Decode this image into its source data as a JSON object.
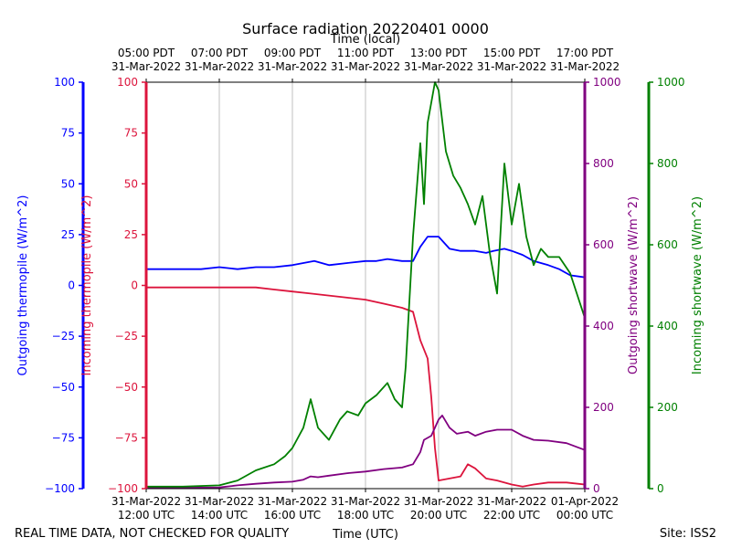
{
  "chart_data": {
    "type": "line",
    "title": "Surface radiation 20220401 0000",
    "top_axis_label": "Time (local)",
    "xlabel": "Time (UTC)",
    "x_ticks_bottom": [
      {
        "line1": "31-Mar-2022",
        "line2": "12:00 UTC"
      },
      {
        "line1": "31-Mar-2022",
        "line2": "14:00 UTC"
      },
      {
        "line1": "31-Mar-2022",
        "line2": "16:00 UTC"
      },
      {
        "line1": "31-Mar-2022",
        "line2": "18:00 UTC"
      },
      {
        "line1": "31-Mar-2022",
        "line2": "20:00 UTC"
      },
      {
        "line1": "31-Mar-2022",
        "line2": "22:00 UTC"
      },
      {
        "line1": "01-Apr-2022",
        "line2": "00:00 UTC"
      }
    ],
    "x_ticks_top": [
      {
        "line1": "05:00 PDT",
        "line2": "31-Mar-2022"
      },
      {
        "line1": "07:00 PDT",
        "line2": "31-Mar-2022"
      },
      {
        "line1": "09:00 PDT",
        "line2": "31-Mar-2022"
      },
      {
        "line1": "11:00 PDT",
        "line2": "31-Mar-2022"
      },
      {
        "line1": "13:00 PDT",
        "line2": "31-Mar-2022"
      },
      {
        "line1": "15:00 PDT",
        "line2": "31-Mar-2022"
      },
      {
        "line1": "17:00 PDT",
        "line2": "31-Mar-2022"
      }
    ],
    "x_range_hours_utc": [
      12,
      24
    ],
    "axes": {
      "outgoing_thermopile": {
        "label": "Outgoing thermopile (W/m^2)",
        "color": "#0000ff",
        "ylim": [
          -100,
          100
        ],
        "ticks": [
          "100",
          "75",
          "50",
          "25",
          "0",
          "−25",
          "−50",
          "−75",
          "−100"
        ]
      },
      "incoming_thermopile": {
        "label": "Incoming thermopile (W/m^2)",
        "color": "#dc143c",
        "ylim": [
          -100,
          100
        ],
        "ticks": [
          "100",
          "75",
          "50",
          "25",
          "0",
          "−25",
          "−50",
          "−75",
          "−100"
        ]
      },
      "outgoing_shortwave": {
        "label": "Outgoing shortwave (W/m^2)",
        "color": "#800080",
        "ylim": [
          0,
          1000
        ],
        "ticks": [
          "1000",
          "800",
          "600",
          "400",
          "200",
          "0"
        ]
      },
      "incoming_shortwave": {
        "label": "Incoming shortwave (W/m^2)",
        "color": "#008000",
        "ylim": [
          0,
          1000
        ],
        "ticks": [
          "1000",
          "800",
          "600",
          "400",
          "200",
          "0"
        ]
      }
    },
    "series": [
      {
        "name": "Outgoing thermopile",
        "axis": "outgoing_thermopile",
        "color": "#0000ff",
        "x": [
          12.0,
          12.5,
          13.0,
          13.5,
          14.0,
          14.5,
          15.0,
          15.5,
          16.0,
          16.3,
          16.6,
          17.0,
          17.5,
          18.0,
          18.3,
          18.6,
          19.0,
          19.3,
          19.5,
          19.7,
          20.0,
          20.3,
          20.6,
          21.0,
          21.3,
          21.5,
          21.8,
          22.0,
          22.3,
          22.6,
          23.0,
          23.3,
          23.6,
          24.0
        ],
        "y": [
          8,
          8,
          8,
          8,
          9,
          8,
          9,
          9,
          10,
          11,
          12,
          10,
          11,
          12,
          12,
          13,
          12,
          12,
          19,
          24,
          24,
          18,
          17,
          17,
          16,
          17,
          18,
          17,
          15,
          12,
          10,
          8,
          5,
          4
        ]
      },
      {
        "name": "Incoming thermopile",
        "axis": "incoming_thermopile",
        "color": "#dc143c",
        "x": [
          12.0,
          13.0,
          14.0,
          15.0,
          15.5,
          16.0,
          16.5,
          17.0,
          17.5,
          18.0,
          18.5,
          19.0,
          19.3,
          19.5,
          19.7,
          19.8,
          19.9,
          20.0,
          20.3,
          20.6,
          20.8,
          21.0,
          21.3,
          21.6,
          22.0,
          22.3,
          22.6,
          23.0,
          23.5,
          24.0
        ],
        "y": [
          -1,
          -1,
          -1,
          -1,
          -2,
          -3,
          -4,
          -5,
          -6,
          -7,
          -9,
          -11,
          -13,
          -27,
          -36,
          -55,
          -80,
          -96,
          -95,
          -94,
          -88,
          -90,
          -95,
          -96,
          -98,
          -99,
          -98,
          -97,
          -97,
          -98
        ]
      },
      {
        "name": "Outgoing shortwave",
        "axis": "outgoing_shortwave",
        "color": "#800080",
        "x": [
          12.0,
          13.0,
          14.0,
          14.5,
          15.0,
          15.5,
          16.0,
          16.3,
          16.5,
          16.7,
          17.0,
          17.5,
          18.0,
          18.5,
          19.0,
          19.3,
          19.5,
          19.6,
          19.8,
          20.0,
          20.1,
          20.3,
          20.5,
          20.8,
          21.0,
          21.3,
          21.6,
          22.0,
          22.3,
          22.6,
          23.0,
          23.5,
          24.0
        ],
        "y": [
          2,
          2,
          3,
          8,
          12,
          15,
          17,
          22,
          30,
          28,
          32,
          38,
          42,
          48,
          52,
          60,
          90,
          120,
          130,
          170,
          180,
          150,
          135,
          140,
          130,
          140,
          145,
          145,
          130,
          120,
          118,
          112,
          95
        ]
      },
      {
        "name": "Incoming shortwave",
        "axis": "incoming_shortwave",
        "color": "#008000",
        "x": [
          12.0,
          13.0,
          14.0,
          14.5,
          15.0,
          15.5,
          15.8,
          16.0,
          16.3,
          16.5,
          16.7,
          17.0,
          17.3,
          17.5,
          17.8,
          18.0,
          18.3,
          18.6,
          18.8,
          19.0,
          19.1,
          19.3,
          19.5,
          19.6,
          19.7,
          19.8,
          19.9,
          20.0,
          20.2,
          20.4,
          20.6,
          20.8,
          21.0,
          21.2,
          21.4,
          21.6,
          21.8,
          22.0,
          22.2,
          22.4,
          22.6,
          22.8,
          23.0,
          23.3,
          23.6,
          24.0
        ],
        "y": [
          5,
          5,
          8,
          20,
          45,
          60,
          80,
          100,
          150,
          220,
          150,
          120,
          170,
          190,
          180,
          210,
          230,
          260,
          220,
          200,
          300,
          620,
          850,
          700,
          900,
          950,
          1000,
          980,
          830,
          770,
          740,
          700,
          650,
          720,
          580,
          480,
          800,
          650,
          750,
          620,
          550,
          590,
          570,
          570,
          530,
          420
        ]
      }
    ],
    "footer_left": "REAL TIME DATA, NOT CHECKED FOR QUALITY",
    "footer_right": "Site: ISS2"
  }
}
